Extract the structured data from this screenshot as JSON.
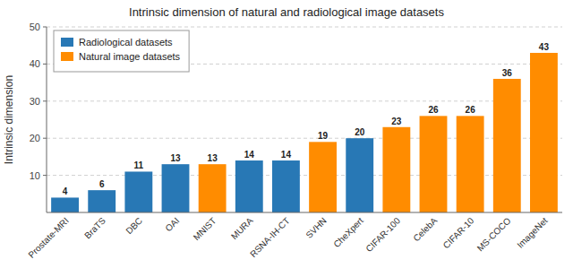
{
  "chart_data": {
    "type": "bar",
    "title": "Intrinsic dimension of natural and radiological image datasets",
    "y_label": "Intrinsic dimension",
    "categories": [
      "Prostate-MRI",
      "BraTS",
      "DBC",
      "OAI",
      "MNIST",
      "MURA",
      "RSNA-IH-CT",
      "SVHN",
      "CheXpert",
      "CIFAR-100",
      "CelebA",
      "CIFAR-10",
      "MS-COCO",
      "ImageNet"
    ],
    "series": [
      {
        "name": "Radiological datasets",
        "color": "#2878b5",
        "values": [
          4,
          6,
          11,
          13,
          null,
          14,
          14,
          null,
          20,
          null,
          null,
          null,
          null,
          null
        ]
      },
      {
        "name": "Natural image datasets",
        "color": "#ff8c00",
        "values": [
          null,
          null,
          null,
          null,
          13,
          null,
          null,
          19,
          null,
          23,
          26,
          26,
          36,
          43
        ]
      }
    ],
    "ylim": [
      0,
      50
    ],
    "yticks": [
      10,
      20,
      30,
      40,
      50
    ],
    "grid": true,
    "legend": "upper left",
    "data_labels": true
  }
}
